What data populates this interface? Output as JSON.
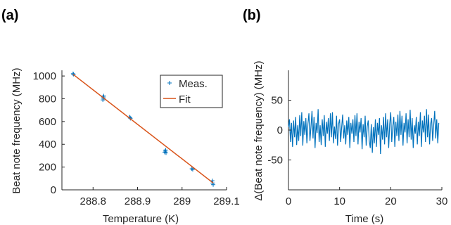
{
  "chart_data": [
    {
      "panel_label": "(a)",
      "type": "scatter",
      "xlabel": "Temperature (K)",
      "ylabel": "Beat note frequency (MHz)",
      "xlim": [
        288.73,
        289.1
      ],
      "ylim": [
        0,
        1050
      ],
      "xticks": [
        288.8,
        288.9,
        289,
        289.1
      ],
      "xtick_labels": [
        "288.8",
        "288.9",
        "289",
        "289.1"
      ],
      "yticks": [
        0,
        200,
        400,
        600,
        800,
        1000
      ],
      "ytick_labels": [
        "0",
        "200",
        "400",
        "600",
        "800",
        "1000"
      ],
      "grid": false,
      "legend": {
        "placement": "top-right",
        "entries": [
          "Meas.",
          "Fit"
        ]
      },
      "series": [
        {
          "name": "Meas.",
          "style": "plus-markers",
          "color": "#0072BD",
          "points": [
            [
              288.755,
              1020
            ],
            [
              288.756,
              1015
            ],
            [
              288.822,
              790
            ],
            [
              288.823,
              805
            ],
            [
              288.823,
              815
            ],
            [
              288.824,
              825
            ],
            [
              288.882,
              640
            ],
            [
              288.883,
              635
            ],
            [
              288.884,
              628
            ],
            [
              288.961,
              330
            ],
            [
              288.962,
              340
            ],
            [
              288.963,
              350
            ],
            [
              288.964,
              325
            ],
            [
              289.022,
              185
            ],
            [
              289.024,
              180
            ],
            [
              289.068,
              80
            ],
            [
              289.069,
              60
            ],
            [
              289.07,
              45
            ]
          ]
        },
        {
          "name": "Fit",
          "style": "line",
          "color": "#D95319",
          "points": [
            [
              288.755,
              1015
            ],
            [
              289.07,
              60
            ]
          ]
        }
      ]
    },
    {
      "panel_label": "(b)",
      "type": "line",
      "xlabel": "Time (s)",
      "ylabel": "Δ(Beat note frequency) (MHz)",
      "xlim": [
        0,
        30
      ],
      "ylim": [
        -100,
        100
      ],
      "xticks": [
        0,
        10,
        20,
        30
      ],
      "xtick_labels": [
        "0",
        "10",
        "20",
        "30"
      ],
      "yticks": [
        -50,
        0,
        50
      ],
      "ytick_labels": [
        "-50",
        "0",
        "50"
      ],
      "grid": false,
      "series": [
        {
          "color": "#0072BD",
          "dt": 0.2,
          "values": [
            5,
            18,
            -20,
            12,
            -28,
            16,
            -12,
            22,
            -25,
            8,
            -18,
            25,
            -10,
            30,
            -26,
            15,
            -8,
            20,
            -22,
            10,
            28,
            -18,
            5,
            32,
            -14,
            22,
            -30,
            12,
            -5,
            35,
            -20,
            8,
            -25,
            18,
            -10,
            25,
            -28,
            14,
            -6,
            20,
            -18,
            28,
            -12,
            30,
            -22,
            6,
            -15,
            24,
            -26,
            10,
            18,
            -20,
            4,
            26,
            -14,
            8,
            -24,
            16,
            -8,
            22,
            -30,
            12,
            -6,
            18,
            -20,
            25,
            -10,
            28,
            -24,
            14,
            -4,
            20,
            -32,
            10,
            -12,
            24,
            -26,
            6,
            16,
            -18,
            -30,
            10,
            -38,
            5,
            -22,
            18,
            -28,
            12,
            -8,
            20,
            -40,
            8,
            -16,
            22,
            -24,
            28,
            -12,
            18,
            -30,
            10,
            30,
            -20,
            6,
            22,
            -28,
            14,
            -10,
            26,
            -18,
            32,
            -8,
            24,
            -26,
            12,
            -4,
            28,
            -22,
            18,
            -12,
            34,
            -16,
            20,
            -30,
            8,
            -6,
            22,
            -24,
            14,
            -10,
            30,
            -28,
            16,
            -4,
            24,
            -20,
            35,
            -12,
            26,
            -24,
            10,
            20,
            -18,
            8,
            32,
            -14,
            18,
            -22,
            12
          ]
        }
      ]
    }
  ]
}
